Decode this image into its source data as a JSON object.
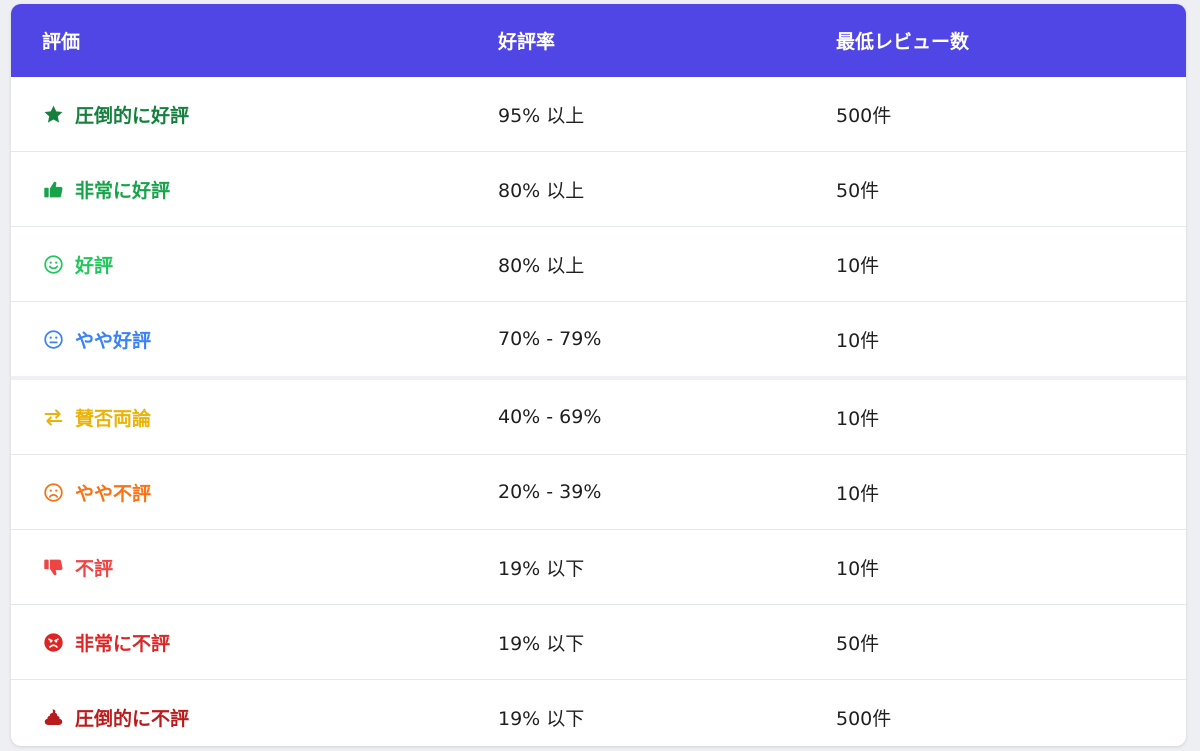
{
  "table": {
    "headers": [
      "評価",
      "好評率",
      "最低レビュー数"
    ],
    "rows": [
      {
        "label": "圧倒的に好評",
        "rate": "95% 以上",
        "min": "500件",
        "color": "#15803d",
        "icon": "star-icon"
      },
      {
        "label": "非常に好評",
        "rate": "80% 以上",
        "min": "50件",
        "color": "#16a34a",
        "icon": "thumbs-up-icon"
      },
      {
        "label": "好評",
        "rate": "80% 以上",
        "min": "10件",
        "color": "#22c55e",
        "icon": "smile-icon"
      },
      {
        "label": "やや好評",
        "rate": "70% - 79%",
        "min": "10件",
        "color": "#3b82f6",
        "icon": "meh-icon"
      },
      {
        "label": "賛否両論",
        "rate": "40% - 69%",
        "min": "10件",
        "color": "#eab308",
        "icon": "exchange-icon"
      },
      {
        "label": "やや不評",
        "rate": "20% - 39%",
        "min": "10件",
        "color": "#f97316",
        "icon": "frown-icon"
      },
      {
        "label": "不評",
        "rate": "19% 以下",
        "min": "10件",
        "color": "#ef4444",
        "icon": "thumbs-down-icon"
      },
      {
        "label": "非常に不評",
        "rate": "19% 以下",
        "min": "50件",
        "color": "#dc2626",
        "icon": "angry-icon"
      },
      {
        "label": "圧倒的に不評",
        "rate": "19% 以下",
        "min": "500件",
        "color": "#b91c1c",
        "icon": "poop-icon"
      }
    ]
  }
}
